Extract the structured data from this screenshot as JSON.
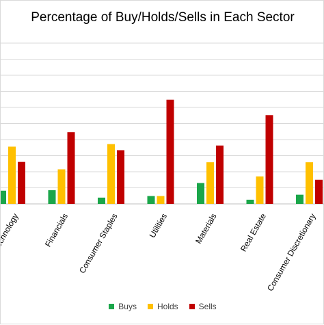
{
  "chart_data": {
    "type": "bar",
    "title": "Percentage of Buy/Holds/Sells in Each Sector",
    "xlabel": "",
    "ylabel": "",
    "ylim": [
      0,
      100
    ],
    "grid": true,
    "legend_position": "bottom",
    "categories": [
      "Information Technology",
      "Financials",
      "Consumer Staples",
      "Utilities",
      "Materials",
      "Real Estate",
      "Consumer Discretionary"
    ],
    "series": [
      {
        "name": "Buys",
        "color": "#1aa64a",
        "values": [
          8.2,
          8.5,
          3.9,
          4.9,
          13.0,
          2.6,
          5.7
        ]
      },
      {
        "name": "Holds",
        "color": "#ffc000",
        "values": [
          35.6,
          21.5,
          37.2,
          4.9,
          25.9,
          17.1,
          25.9
        ]
      },
      {
        "name": "Sells",
        "color": "#c00000",
        "values": [
          26.1,
          44.6,
          33.4,
          64.8,
          36.3,
          55.2,
          15.0
        ]
      }
    ]
  }
}
